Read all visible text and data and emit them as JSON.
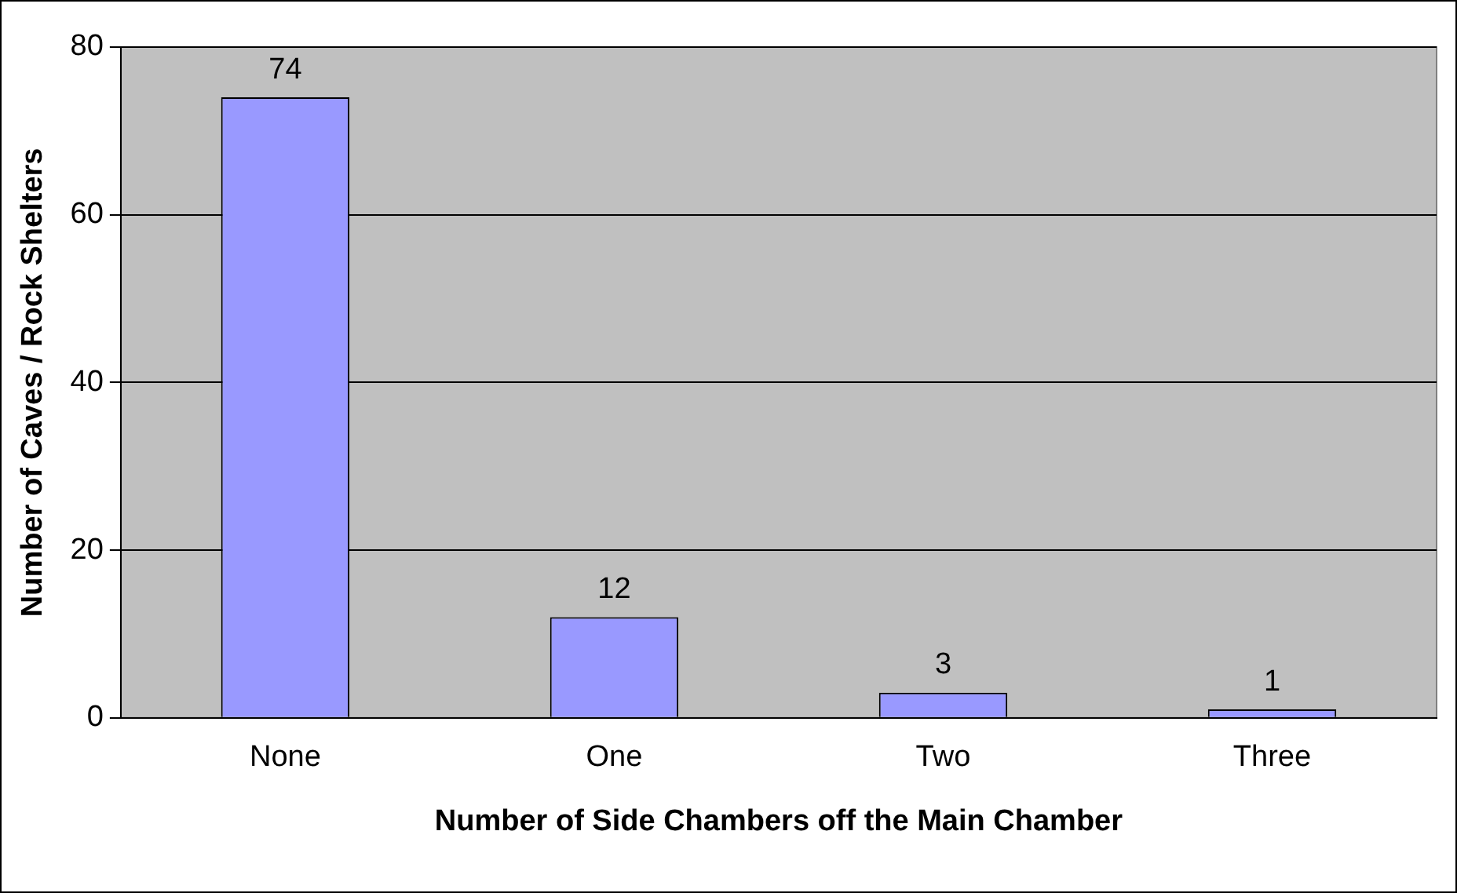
{
  "chart_data": {
    "type": "bar",
    "xlabel": "Number of Side Chambers off the Main Chamber",
    "ylabel": "Number of Caves / Rock Shelters",
    "categories": [
      "None",
      "One",
      "Two",
      "Three"
    ],
    "values": [
      74,
      12,
      3,
      1
    ],
    "color": "#9999ff",
    "ylim": [
      0,
      80
    ],
    "yticks": [
      0,
      20,
      40,
      60,
      80
    ],
    "grid": "y",
    "legend": false,
    "data_labels": true
  }
}
